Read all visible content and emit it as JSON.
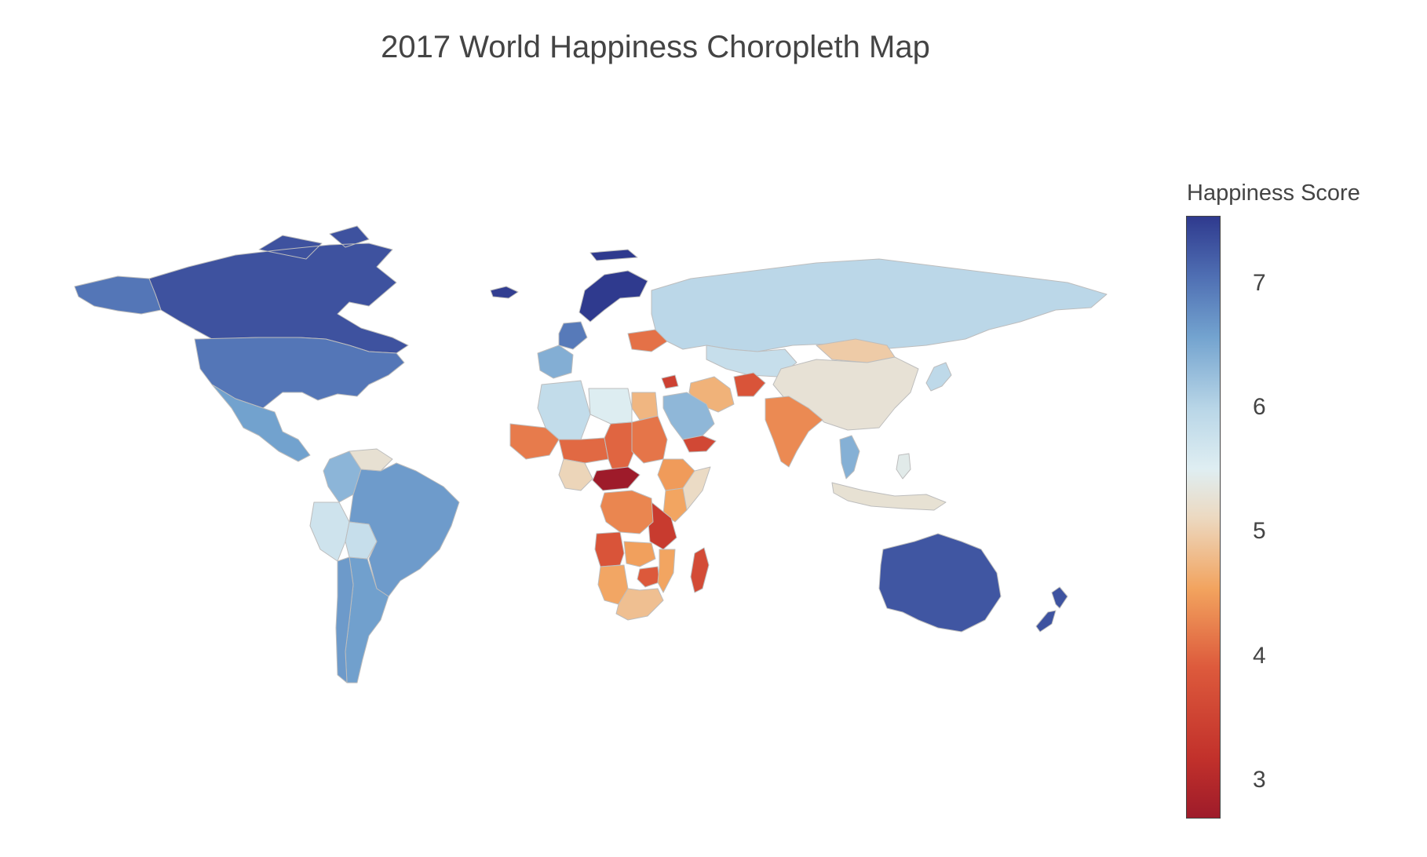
{
  "title": "2017 World Happiness Choropleth Map",
  "colorbar": {
    "title": "Happiness Score",
    "min": 2.69,
    "max": 7.54,
    "ticks": [
      "3",
      "4",
      "5",
      "6",
      "7"
    ],
    "colorscale": [
      "#a50026",
      "#d73027",
      "#f46d43",
      "#fdae61",
      "#fee090",
      "#ffffbf",
      "#e0f3f8",
      "#abd9e9",
      "#74add1",
      "#4575b4",
      "#313695"
    ],
    "colorscale_used": [
      [
        0.0,
        "#9e1b2a"
      ],
      [
        0.1,
        "#c2312b"
      ],
      [
        0.25,
        "#dd5a3c"
      ],
      [
        0.38,
        "#f2a35e"
      ],
      [
        0.5,
        "#ecd9c1"
      ],
      [
        0.58,
        "#dfeef2"
      ],
      [
        0.68,
        "#b9d6e7"
      ],
      [
        0.8,
        "#73a3cf"
      ],
      [
        0.9,
        "#4f6fb3"
      ],
      [
        1.0,
        "#2f3a8e"
      ]
    ]
  },
  "map_data": {
    "projection": "natural-earth-like",
    "countries": [
      {
        "name": "Canada",
        "score": 7.32
      },
      {
        "name": "United States",
        "score": 6.99
      },
      {
        "name": "Mexico",
        "score": 6.58
      },
      {
        "name": "Brazil",
        "score": 6.64
      },
      {
        "name": "Argentina",
        "score": 6.6
      },
      {
        "name": "Peru",
        "score": 5.72
      },
      {
        "name": "Bolivia",
        "score": 5.82
      },
      {
        "name": "Colombia",
        "score": 6.36
      },
      {
        "name": "Venezuela",
        "score": 5.25
      },
      {
        "name": "Chile",
        "score": 6.65
      },
      {
        "name": "Norway",
        "score": 7.54
      },
      {
        "name": "Iceland",
        "score": 7.5
      },
      {
        "name": "France",
        "score": 6.44
      },
      {
        "name": "Germany",
        "score": 6.95
      },
      {
        "name": "Ukraine",
        "score": 4.1
      },
      {
        "name": "Russia",
        "score": 5.96
      },
      {
        "name": "Kazakhstan",
        "score": 5.82
      },
      {
        "name": "Mongolia",
        "score": 4.96
      },
      {
        "name": "China",
        "score": 5.27
      },
      {
        "name": "Japan",
        "score": 5.92
      },
      {
        "name": "India",
        "score": 4.32
      },
      {
        "name": "Iran",
        "score": 4.69
      },
      {
        "name": "Afghanistan",
        "score": 3.79
      },
      {
        "name": "Saudi Arabia",
        "score": 6.34
      },
      {
        "name": "Egypt",
        "score": 4.74
      },
      {
        "name": "Libya",
        "score": 5.53
      },
      {
        "name": "Algeria",
        "score": 5.87
      },
      {
        "name": "Mali",
        "score": 4.19
      },
      {
        "name": "Niger",
        "score": 4.03
      },
      {
        "name": "Chad",
        "score": 4.0
      },
      {
        "name": "Sudan",
        "score": 4.14
      },
      {
        "name": "Nigeria",
        "score": 5.07
      },
      {
        "name": "Central African Republic",
        "score": 2.69
      },
      {
        "name": "Ethiopia",
        "score": 4.46
      },
      {
        "name": "Somalia",
        "score": 5.15
      },
      {
        "name": "Kenya",
        "score": 4.55
      },
      {
        "name": "Tanzania",
        "score": 3.35
      },
      {
        "name": "Dem. Rep. Congo",
        "score": 4.28
      },
      {
        "name": "Angola",
        "score": 3.79
      },
      {
        "name": "Zambia",
        "score": 4.51
      },
      {
        "name": "Zimbabwe",
        "score": 3.88
      },
      {
        "name": "Mozambique",
        "score": 4.55
      },
      {
        "name": "Namibia",
        "score": 4.57
      },
      {
        "name": "South Africa",
        "score": 4.83
      },
      {
        "name": "Madagascar",
        "score": 3.64
      },
      {
        "name": "Yemen",
        "score": 3.59
      },
      {
        "name": "Syria",
        "score": 3.46
      },
      {
        "name": "Thailand",
        "score": 6.42
      },
      {
        "name": "Indonesia",
        "score": 5.26
      },
      {
        "name": "Philippines",
        "score": 5.43
      },
      {
        "name": "Australia",
        "score": 7.28
      },
      {
        "name": "New Zealand",
        "score": 7.31
      }
    ]
  }
}
